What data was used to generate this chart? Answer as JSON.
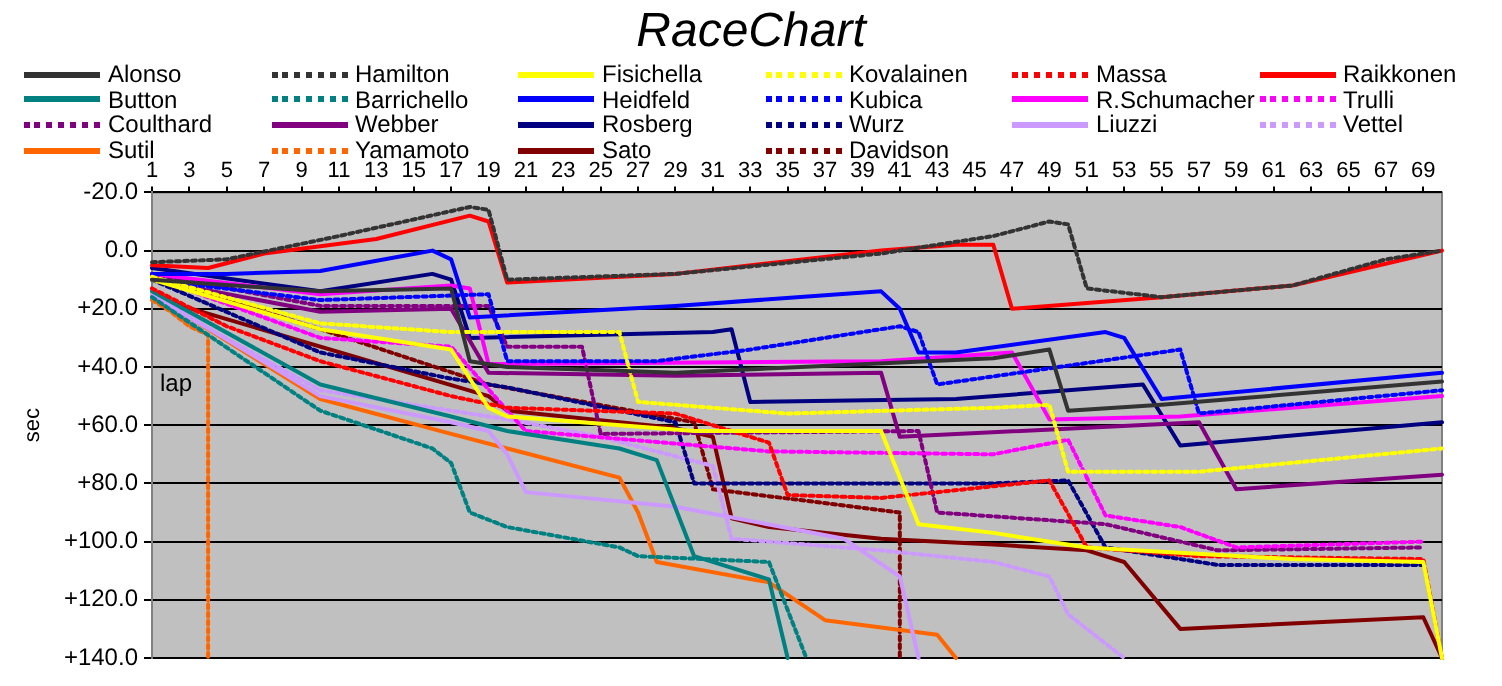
{
  "chart_data": {
    "type": "line",
    "title": "RaceChart",
    "xlabel": "lap",
    "ylabel": "sec",
    "xlim": [
      1,
      70
    ],
    "xticks": [
      1,
      3,
      5,
      7,
      9,
      11,
      13,
      15,
      17,
      19,
      21,
      23,
      25,
      27,
      29,
      31,
      33,
      35,
      37,
      39,
      41,
      43,
      45,
      47,
      49,
      51,
      53,
      55,
      57,
      59,
      61,
      63,
      65,
      67,
      69
    ],
    "ylim": [
      140,
      -20
    ],
    "yticks": [
      {
        "value": -20,
        "label": "-20.0"
      },
      {
        "value": 0,
        "label": "0.0"
      },
      {
        "value": 20,
        "label": "+20.0"
      },
      {
        "value": 40,
        "label": "+40.0"
      },
      {
        "value": 60,
        "label": "+60.0"
      },
      {
        "value": 80,
        "label": "+80.0"
      },
      {
        "value": 100,
        "label": "+100.0"
      },
      {
        "value": 120,
        "label": "+120.0"
      },
      {
        "value": 140,
        "label": "+140.0"
      }
    ],
    "grid": "y",
    "legend": "top",
    "marker": "none",
    "series": [
      {
        "name": "Alonso",
        "color": "#333333",
        "x": [
          1,
          10,
          17,
          18,
          20,
          29,
          46,
          49,
          50,
          55,
          70
        ],
        "values": [
          10,
          14,
          13,
          38,
          40,
          42,
          37,
          34,
          55,
          53,
          45
        ]
      },
      {
        "name": "Hamilton",
        "color": "#333333",
        "line_style": "dotted",
        "x": [
          1,
          5,
          11,
          18,
          19,
          20,
          29,
          40,
          46,
          49,
          50,
          51,
          55,
          62,
          67,
          70
        ],
        "values": [
          4,
          3,
          -5,
          -15,
          -14,
          10,
          8,
          1,
          -5,
          -10,
          -9,
          13,
          16,
          12,
          3,
          0
        ]
      },
      {
        "name": "Fisichella",
        "color": "#ffff00",
        "x": [
          1,
          10,
          17,
          19,
          20,
          30,
          40,
          42,
          46,
          51,
          62,
          69,
          70
        ],
        "values": [
          10,
          27,
          34,
          54,
          57,
          62,
          62,
          94,
          97,
          102,
          106,
          107,
          140
        ]
      },
      {
        "name": "Kovalainen",
        "color": "#ffff00",
        "line_style": "dotted",
        "x": [
          1,
          10,
          17,
          26,
          27,
          35,
          46,
          49,
          50,
          57,
          70
        ],
        "values": [
          9,
          25,
          28,
          28,
          52,
          56,
          54,
          53,
          76,
          76,
          68
        ]
      },
      {
        "name": "Massa",
        "color": "#ff0000",
        "line_style": "dotted",
        "x": [
          1,
          5,
          10,
          17,
          20,
          29,
          34,
          35,
          40,
          46,
          49,
          51,
          57,
          69,
          70
        ],
        "values": [
          13,
          26,
          38,
          50,
          54,
          56,
          66,
          84,
          85,
          81,
          79,
          102,
          105,
          106,
          140
        ]
      },
      {
        "name": "Raikkonen",
        "color": "#ff0000",
        "x": [
          1,
          4,
          7,
          13,
          18,
          19,
          20,
          29,
          40,
          44,
          46,
          47,
          55,
          62,
          70
        ],
        "values": [
          5,
          6,
          1,
          -4,
          -12,
          -10,
          11,
          8,
          0,
          -2,
          -2,
          20,
          16,
          12,
          0
        ]
      },
      {
        "name": "Button",
        "color": "#008080",
        "x": [
          1,
          10,
          17,
          20,
          26,
          28,
          30,
          34,
          35
        ],
        "values": [
          14,
          46,
          57,
          62,
          68,
          72,
          105,
          113,
          140
        ]
      },
      {
        "name": "Barrichello",
        "color": "#008080",
        "line_style": "dotted",
        "x": [
          1,
          10,
          16,
          17,
          18,
          20,
          26,
          27,
          34,
          36
        ],
        "values": [
          16,
          55,
          68,
          73,
          90,
          95,
          102,
          105,
          107,
          140
        ]
      },
      {
        "name": "Heidfeld",
        "color": "#0000ff",
        "x": [
          1,
          5,
          10,
          16,
          17,
          18,
          29,
          40,
          41,
          42,
          44,
          52,
          53,
          55,
          70
        ],
        "values": [
          8,
          8,
          7,
          0,
          3,
          23,
          19,
          14,
          20,
          35,
          35,
          28,
          30,
          51,
          42
        ]
      },
      {
        "name": "Kubica",
        "color": "#0000ff",
        "line_style": "dotted",
        "x": [
          1,
          10,
          19,
          20,
          28,
          33,
          41,
          42,
          43,
          56,
          57,
          70
        ],
        "values": [
          10,
          17,
          15,
          38,
          38,
          34,
          26,
          28,
          46,
          34,
          56,
          48
        ]
      },
      {
        "name": "R.Schumacher",
        "color": "#ff00ff",
        "x": [
          1,
          10,
          17,
          18,
          19,
          40,
          47,
          49,
          56,
          70
        ],
        "values": [
          8,
          15,
          12,
          13,
          39,
          38,
          35,
          58,
          57,
          50
        ]
      },
      {
        "name": "Trulli",
        "color": "#ff00ff",
        "line_style": "dotted",
        "x": [
          1,
          10,
          17,
          20,
          21,
          34,
          46,
          50,
          52,
          56,
          59,
          69
        ],
        "values": [
          9,
          30,
          33,
          55,
          62,
          69,
          70,
          65,
          91,
          95,
          102,
          100
        ]
      },
      {
        "name": "Coulthard",
        "color": "#800080",
        "line_style": "dotted",
        "x": [
          1,
          10,
          19,
          20,
          24,
          25,
          42,
          43,
          52,
          58,
          69
        ],
        "values": [
          8,
          19,
          19,
          33,
          33,
          63,
          62,
          90,
          94,
          103,
          102
        ]
      },
      {
        "name": "Webber",
        "color": "#800080",
        "x": [
          1,
          10,
          17,
          19,
          29,
          40,
          41,
          57,
          59,
          70
        ],
        "values": [
          10,
          21,
          20,
          42,
          43,
          42,
          64,
          59,
          82,
          77
        ]
      },
      {
        "name": "Rosberg",
        "color": "#000080",
        "x": [
          1,
          10,
          16,
          17,
          18,
          31,
          32,
          33,
          44,
          54,
          56,
          70
        ],
        "values": [
          6,
          14,
          8,
          10,
          30,
          28,
          27,
          52,
          51,
          46,
          67,
          59
        ]
      },
      {
        "name": "Wurz",
        "color": "#000080",
        "line_style": "dotted",
        "x": [
          1,
          10,
          17,
          20,
          29,
          30,
          46,
          50,
          52,
          58,
          69
        ],
        "values": [
          10,
          35,
          44,
          47,
          59,
          80,
          80,
          79,
          102,
          108,
          108
        ]
      },
      {
        "name": "Liuzzi",
        "color": "#cc99ff",
        "x": [
          1,
          10,
          17,
          19,
          20,
          21,
          29,
          38,
          41,
          42
        ],
        "values": [
          15,
          50,
          59,
          62,
          70,
          83,
          88,
          99,
          112,
          140
        ]
      },
      {
        "name": "Vettel",
        "color": "#cc99ff",
        "line_style": "dotted",
        "x": [
          1,
          10,
          17,
          20,
          25,
          31,
          32,
          40,
          46,
          49,
          50,
          53
        ],
        "values": [
          16,
          48,
          55,
          58,
          64,
          74,
          99,
          103,
          107,
          112,
          125,
          140
        ]
      },
      {
        "name": "Sutil",
        "color": "#ff6600",
        "x": [
          1,
          10,
          17,
          20,
          26,
          27,
          28,
          34,
          37,
          43,
          44
        ],
        "values": [
          15,
          51,
          63,
          68,
          78,
          90,
          107,
          114,
          127,
          132,
          140
        ]
      },
      {
        "name": "Yamamoto",
        "color": "#ff6600",
        "line_style": "dotted",
        "x": [
          1,
          2,
          3,
          4,
          4
        ],
        "values": [
          17,
          21,
          26,
          29,
          140
        ]
      },
      {
        "name": "Sato",
        "color": "#800000",
        "x": [
          1,
          19,
          20,
          29,
          31,
          32,
          34,
          40,
          46,
          51,
          53,
          56,
          69,
          70
        ],
        "values": [
          16,
          50,
          55,
          61,
          64,
          92,
          95,
          99,
          101,
          103,
          107,
          130,
          126,
          140
        ]
      },
      {
        "name": "Davidson",
        "color": "#800000",
        "line_style": "dotted",
        "x": [
          1,
          10,
          19,
          30,
          31,
          41,
          41
        ],
        "values": [
          9,
          27,
          46,
          59,
          82,
          90,
          140
        ]
      }
    ]
  }
}
